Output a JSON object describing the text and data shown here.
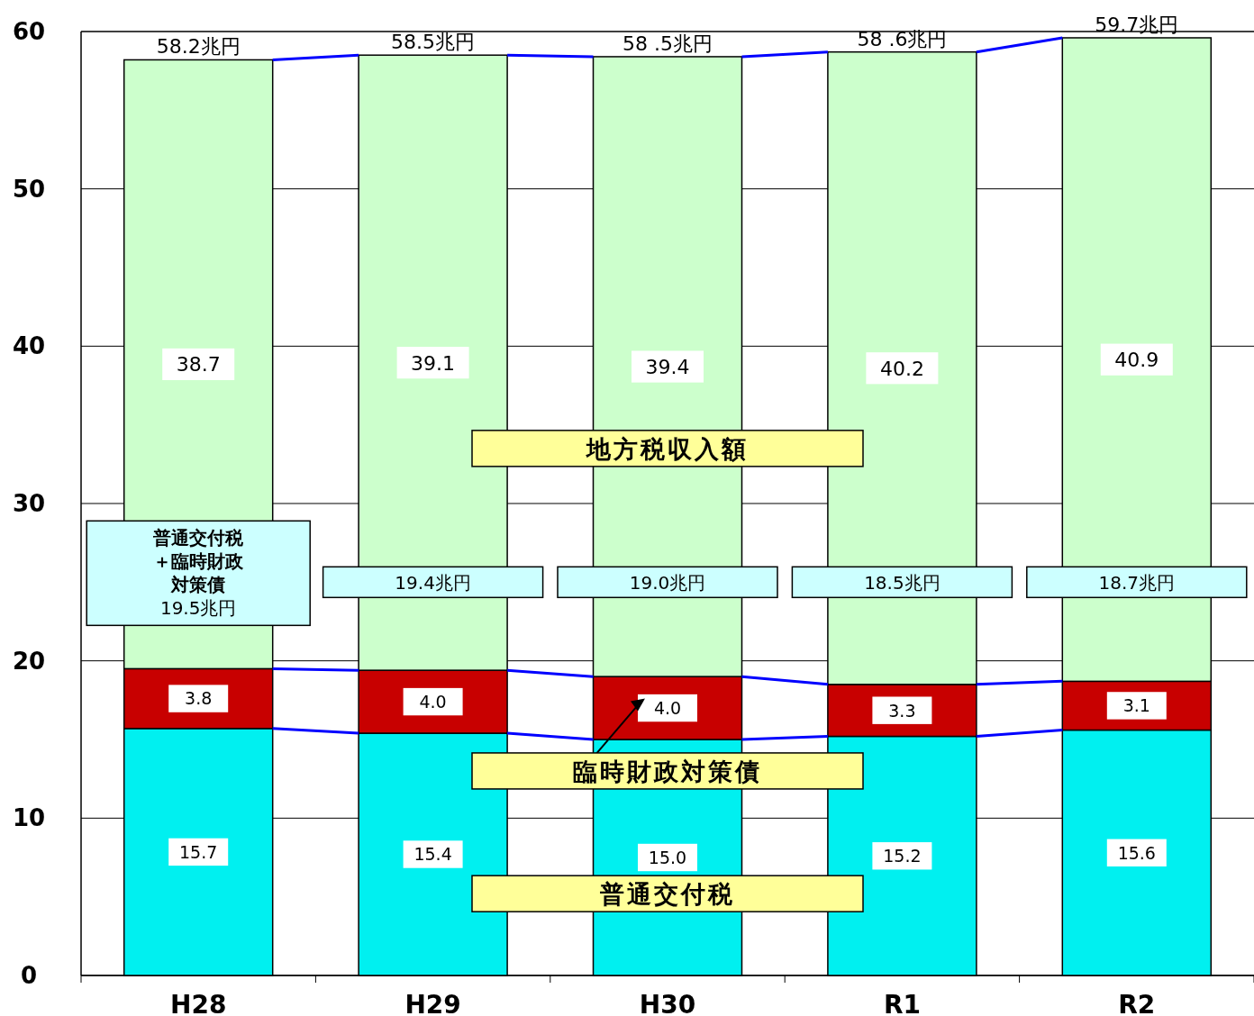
{
  "chart_data": {
    "type": "bar",
    "stacked": true,
    "categories": [
      "H28",
      "H29",
      "H30",
      "R1",
      "R2"
    ],
    "series": [
      {
        "name": "普通交付税",
        "color": "#00f0f0",
        "values": [
          15.7,
          15.4,
          15.0,
          15.2,
          15.6
        ],
        "value_labels": [
          "15.7",
          "15.4",
          "15.0",
          "15.2",
          "15.6"
        ]
      },
      {
        "name": "臨時財政対策債",
        "color": "#c80000",
        "values": [
          3.8,
          4.0,
          4.0,
          3.3,
          3.1
        ],
        "value_labels": [
          "3.8",
          "4.0",
          "4.0",
          "3.3",
          "3.1"
        ]
      },
      {
        "name": "地方税収入額",
        "color": "#ccffcc",
        "values": [
          38.7,
          39.1,
          39.4,
          40.2,
          40.9
        ],
        "value_labels": [
          "38.7",
          "39.1",
          "39.4",
          "40.2",
          "40.9"
        ]
      }
    ],
    "ylim": [
      0,
      60
    ],
    "yticks": [
      0,
      10,
      20,
      30,
      40,
      50,
      60
    ],
    "grid": "y",
    "legend": "center",
    "totals": [
      "58.2兆円",
      "58.5兆円",
      "58 .5兆円",
      "58 .6兆円",
      "59.7兆円"
    ],
    "annotations": [
      "普通交付税＋臨時財政対策債",
      "19.5兆円",
      "19.4兆円",
      "19.0兆円",
      "18.5兆円",
      "18.7兆円"
    ]
  }
}
